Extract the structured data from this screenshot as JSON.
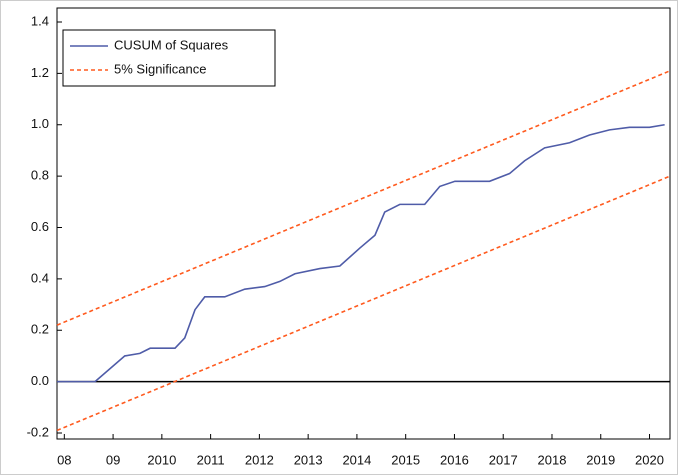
{
  "chart_data": {
    "type": "line",
    "xlim": [
      2007.85,
      2020.42
    ],
    "xticks": [
      {
        "value": 2008,
        "label": "08"
      },
      {
        "value": 2009,
        "label": "09"
      },
      2010,
      2011,
      2012,
      2013,
      2014,
      2015,
      2016,
      2017,
      2018,
      2019,
      2020
    ],
    "ylim": [
      -0.2,
      1.4
    ],
    "yticks": [
      -0.2,
      {
        "value": 0,
        "label": "0.0"
      },
      0.2,
      0.4,
      0.6,
      0.8,
      {
        "value": 1,
        "label": "1.0"
      },
      1.2,
      1.4
    ],
    "series": [
      {
        "name": "CUSUM of Squares",
        "color": "#4f5ca8",
        "dashed": false,
        "x": [
          2007.85,
          2008.63,
          2009.24,
          2009.55,
          2009.76,
          2010.27,
          2010.47,
          2010.68,
          2010.88,
          2011.29,
          2011.7,
          2012.11,
          2012.42,
          2012.73,
          2013.24,
          2013.65,
          2014.06,
          2014.37,
          2014.57,
          2014.88,
          2015.39,
          2015.7,
          2016.01,
          2016.72,
          2017.13,
          2017.44,
          2017.85,
          2018.36,
          2018.77,
          2019.18,
          2019.59,
          2020.0,
          2020.31
        ],
        "values": [
          0,
          0,
          0.1,
          0.11,
          0.13,
          0.13,
          0.17,
          0.28,
          0.33,
          0.33,
          0.36,
          0.37,
          0.39,
          0.42,
          0.44,
          0.45,
          0.52,
          0.57,
          0.66,
          0.69,
          0.69,
          0.76,
          0.78,
          0.78,
          0.81,
          0.86,
          0.91,
          0.93,
          0.96,
          0.98,
          0.99,
          0.99,
          1.0
        ]
      },
      {
        "name": "5% Significance",
        "color": "#ff5a1e",
        "dashed": true,
        "x": [
          2007.85,
          2020.42
        ],
        "values": [
          0.22,
          1.21
        ],
        "lower": [
          -0.19,
          0.8
        ]
      }
    ]
  }
}
